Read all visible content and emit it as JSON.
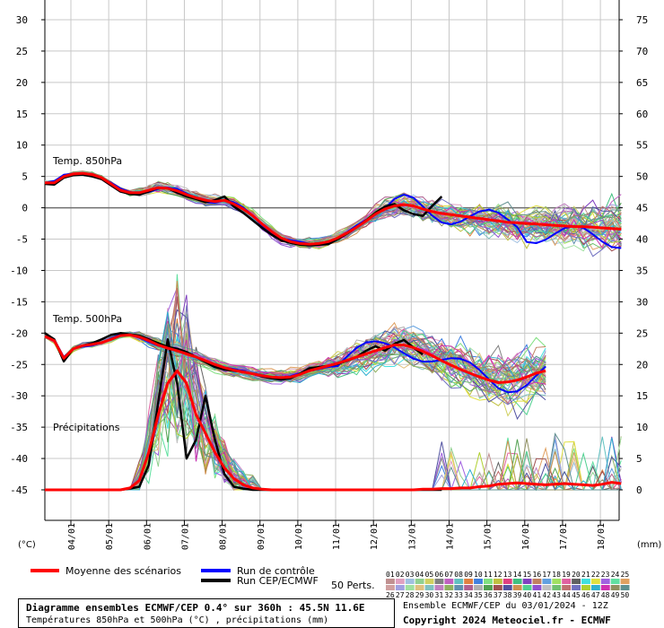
{
  "chart_data": {
    "type": "line",
    "left_axis_unit": "(°C)",
    "right_axis_unit": "(mm)",
    "left_ticks": [
      30,
      25,
      20,
      15,
      10,
      5,
      0,
      -5,
      -10,
      -15,
      -20,
      -25,
      -30,
      -35,
      -40,
      -45
    ],
    "right_ticks": [
      75,
      70,
      65,
      60,
      55,
      50,
      45,
      40,
      35,
      30,
      25,
      20,
      15,
      10,
      5,
      0
    ],
    "ylim_left": [
      -45,
      30
    ],
    "ylim_right": [
      0,
      75
    ],
    "x_dates": [
      "04/01",
      "05/01",
      "06/01",
      "07/01",
      "08/01",
      "09/01",
      "10/01",
      "11/01",
      "12/01",
      "13/01",
      "14/01",
      "15/01",
      "16/01",
      "17/01",
      "18/01"
    ],
    "x_step_hours": 6,
    "labels": {
      "t850": "Temp. 850hPa",
      "t500": "Temp. 500hPa",
      "precip": "Précipitations"
    },
    "series": [
      {
        "name": "Moyenne des scénarios",
        "color": "#ff0000",
        "t850": [
          4,
          4,
          5,
          5.4,
          5.5,
          5.3,
          4.8,
          3.8,
          2.8,
          2.4,
          2.4,
          2.8,
          3.2,
          3.1,
          2.7,
          2.1,
          1.6,
          1.2,
          1,
          1.2,
          0.6,
          -0.2,
          -1.3,
          -2.6,
          -3.8,
          -4.8,
          -5.4,
          -5.7,
          -5.8,
          -5.7,
          -5.4,
          -4.8,
          -4,
          -3.1,
          -2.1,
          -1,
          -0.2,
          0.3,
          0.5,
          0.3,
          -0.2,
          -0.6,
          -0.9,
          -1.1,
          -1.3,
          -1.5,
          -1.7,
          -1.9,
          -2.1,
          -2.3,
          -2.4,
          -2.5,
          -2.6,
          -2.7,
          -2.8,
          -2.9,
          -3,
          -3,
          -3.1,
          -3.2,
          -3.3,
          -3.4
        ],
        "t500": [
          -20.5,
          -21.2,
          -24,
          -22.5,
          -22,
          -21.8,
          -21.5,
          -21,
          -20.4,
          -20.3,
          -20.6,
          -21.2,
          -21.9,
          -22.4,
          -22.8,
          -23.3,
          -23.8,
          -24.4,
          -25,
          -25.5,
          -25.9,
          -26.2,
          -26.5,
          -26.8,
          -27,
          -27.1,
          -27,
          -26.6,
          -26,
          -25.6,
          -25.2,
          -24.8,
          -24.3,
          -23.8,
          -23.3,
          -22.8,
          -22.3,
          -21.9,
          -21.9,
          -22.3,
          -22.9,
          -23.6,
          -24.4,
          -25.1,
          -25.8,
          -26.4,
          -27,
          -27.5,
          -27.9,
          -27.8,
          -27.5,
          -27,
          -26.4,
          -26
        ],
        "precip": [
          0,
          0,
          0,
          0,
          0,
          0,
          0,
          0,
          0,
          0.3,
          1.5,
          6,
          12,
          17,
          19,
          17,
          12,
          9,
          6,
          3.5,
          1.8,
          0.8,
          0.3,
          0.1,
          0,
          0,
          0,
          0,
          0,
          0,
          0,
          0,
          0,
          0,
          0,
          0,
          0,
          0,
          0,
          0,
          0.1,
          0.1,
          0.2,
          0.2,
          0.3,
          0.3,
          0.5,
          0.6,
          0.9,
          1,
          1.1,
          1,
          0.9,
          0.8,
          0.9,
          1,
          0.9,
          0.8,
          0.7,
          0.9,
          1.2,
          1
        ]
      },
      {
        "name": "Run de contrôle",
        "color": "#0000ff"
      },
      {
        "name": "Run CEP/ECMWF",
        "color": "#000000",
        "t850": [
          3.8,
          3.7,
          4.8,
          5.2,
          5.3,
          5,
          4.6,
          3.6,
          2.6,
          2.2,
          2.1,
          2.6,
          3.2,
          3.1,
          2.4,
          1.8,
          1.4,
          0.9,
          1.2,
          1.8,
          0.2,
          -0.8,
          -2,
          -3.2,
          -4.3,
          -5.2,
          -5.6,
          -5.9,
          -6,
          -5.9,
          -5.8,
          -5,
          -4.1,
          -3.1,
          -2,
          -0.8,
          0.2,
          0.6,
          -0.4,
          -1,
          -1.3,
          0.3,
          1.8
        ],
        "t500": [
          -20,
          -21,
          -24.5,
          -22.5,
          -22,
          -21.6,
          -21,
          -20.3,
          -20,
          -20.2,
          -20.4,
          -21,
          -21.6,
          -22.2,
          -22.5,
          -23,
          -23.8,
          -24.6,
          -25.4,
          -25.8,
          -26,
          -26.2,
          -26.5,
          -26.9,
          -27.2,
          -27.4,
          -27.2,
          -26.5,
          -25.6,
          -25.4,
          -25.2,
          -24.9,
          -24.4,
          -23.8,
          -22.8,
          -22.1,
          -22.8,
          -21.7,
          -21.1,
          -22.3,
          -23.4
        ],
        "precip": [
          0,
          0,
          0,
          0,
          0,
          0,
          0,
          0,
          0,
          0.2,
          0.5,
          4,
          14,
          24,
          17,
          5,
          8,
          15,
          8,
          2.5,
          0.5,
          0.2,
          0,
          0,
          0,
          0,
          0,
          0,
          0,
          0,
          0,
          0,
          0,
          0,
          0,
          0,
          0,
          0,
          0,
          0,
          0,
          0,
          0
        ]
      }
    ],
    "members": "50 Perts.",
    "member_numbers_top": [
      "01",
      "02",
      "03",
      "04",
      "05",
      "06",
      "07",
      "08",
      "09",
      "10",
      "11",
      "12",
      "13",
      "14",
      "15",
      "16",
      "17",
      "18",
      "19",
      "20",
      "21",
      "22",
      "23",
      "24",
      "25"
    ],
    "member_numbers_bottom": [
      "26",
      "27",
      "28",
      "29",
      "30",
      "31",
      "32",
      "33",
      "34",
      "35",
      "36",
      "37",
      "38",
      "39",
      "40",
      "41",
      "42",
      "43",
      "44",
      "45",
      "46",
      "47",
      "48",
      "49",
      "50"
    ],
    "member_colors_top": [
      "#c09090",
      "#e0a0c0",
      "#a0c0e0",
      "#90d090",
      "#d0d060",
      "#808080",
      "#c060c0",
      "#60c0c0",
      "#e08040",
      "#4080e0",
      "#80e080",
      "#c0c040",
      "#e04080",
      "#40c080",
      "#8040c0",
      "#c08060",
      "#60a0e0",
      "#a0e060",
      "#e060a0",
      "#606060",
      "#40e0e0",
      "#e0e040",
      "#a060e0",
      "#60e0a0",
      "#e0a060"
    ],
    "member_colors_bottom": [
      "#d0a0a0",
      "#a0a0e0",
      "#a0e0a0",
      "#e0c080",
      "#80c0c0",
      "#c080c0",
      "#90b060",
      "#6090b0",
      "#b06090",
      "#b0b0b0",
      "#50a050",
      "#a05050",
      "#5050a0",
      "#d09050",
      "#50d090",
      "#9050d0",
      "#c0c0c0",
      "#70c070",
      "#c07070",
      "#7070c0",
      "#b0d030",
      "#30b0d0",
      "#d030b0",
      "#909060",
      "#609090"
    ]
  },
  "legend": {
    "mean": "Moyenne des scénarios",
    "control": "Run de contrôle",
    "run": "Run CEP/ECMWF",
    "perts": "50 Perts."
  },
  "footer": {
    "title": "Diagramme ensembles ECMWF/CEP 0.4° sur 360h : 45.5N 11.6E",
    "subtitle": "Températures 850hPa et 500hPa (°C) , précipitations (mm)",
    "run_info": "Ensemble ECMWF/CEP du 03/01/2024 - 12Z",
    "copyright": "Copyright 2024 Meteociel.fr - ECMWF"
  }
}
